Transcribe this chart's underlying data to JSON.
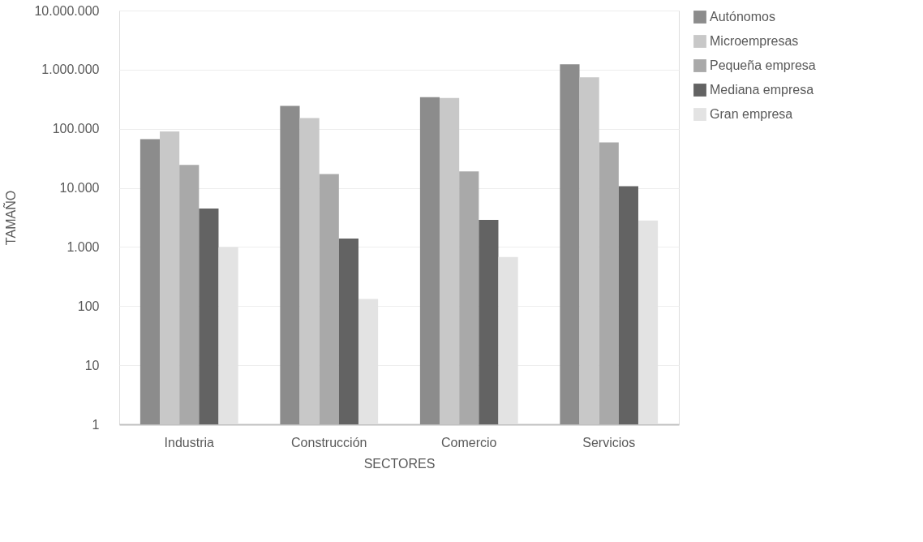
{
  "chart_data": {
    "type": "bar",
    "xlabel": "SECTORES",
    "ylabel": "TAMAÑO",
    "categories": [
      "Industria",
      "Construcción",
      "Comercio",
      "Servicios"
    ],
    "series": [
      {
        "name": "Autónomos",
        "color": "#8c8c8c",
        "values": [
          67000,
          243000,
          342000,
          1230000
        ]
      },
      {
        "name": "Microempresas",
        "color": "#c8c8c8",
        "values": [
          90000,
          152000,
          333000,
          741000
        ]
      },
      {
        "name": "Pequeña empresa",
        "color": "#a9a9a9",
        "values": [
          24500,
          17200,
          19000,
          58700
        ]
      },
      {
        "name": "Mediana empresa",
        "color": "#636363",
        "values": [
          4480,
          1390,
          2870,
          10700
        ]
      },
      {
        "name": "Gran empresa",
        "color": "#e3e3e3",
        "values": [
          990,
          132,
          677,
          2800
        ]
      }
    ],
    "log": true,
    "ylim": [
      1,
      10000000
    ],
    "yticks": [
      {
        "value": 1,
        "label": "1"
      },
      {
        "value": 10,
        "label": "10"
      },
      {
        "value": 100,
        "label": "100"
      },
      {
        "value": 1000,
        "label": "1.000"
      },
      {
        "value": 10000,
        "label": "10.000"
      },
      {
        "value": 100000,
        "label": "100.000"
      },
      {
        "value": 1000000,
        "label": "1.000.000"
      },
      {
        "value": 10000000,
        "label": "10.000.000"
      }
    ],
    "grid": "y",
    "legend": "right"
  }
}
